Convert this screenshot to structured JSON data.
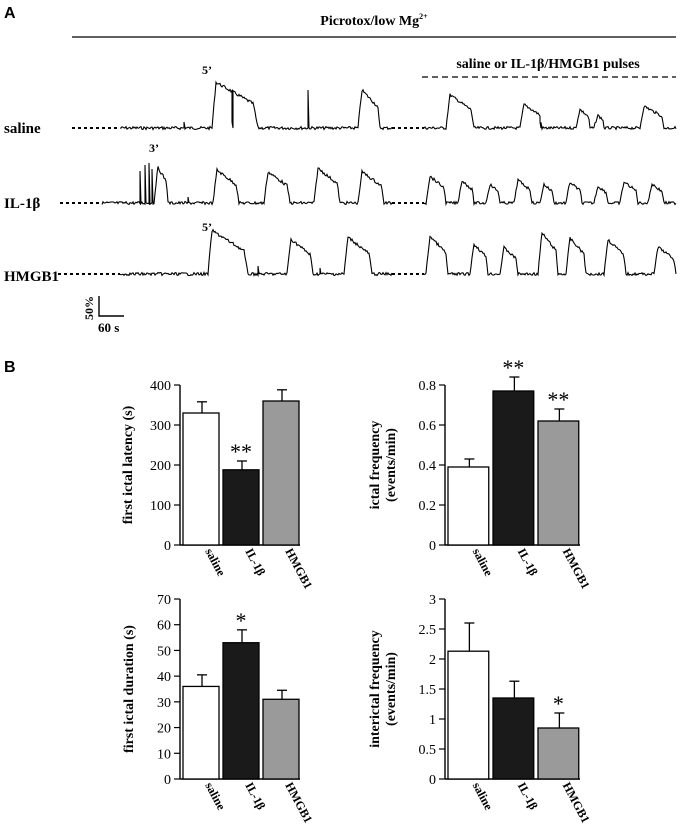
{
  "panel_a": {
    "letter": "A",
    "protocol_label": "Picrotox/low Mg",
    "protocol_superscript": "2+",
    "pulses_label": "saline or IL-1β/HMGB1 pulses",
    "scale_bar_y": "50%",
    "scale_bar_x": "60 s",
    "traces": [
      {
        "label": "saline",
        "first_event_label": "5’"
      },
      {
        "label": "IL-1β",
        "first_event_label": "3’"
      },
      {
        "label": "HMGB1",
        "first_event_label": "5’"
      }
    ]
  },
  "panel_b": {
    "letter": "B"
  },
  "colors": {
    "saline": "#ffffff",
    "il1b": "#1a1a1a",
    "hmgb1": "#9a9a9a",
    "stroke": "#000000"
  },
  "chart_data": [
    {
      "type": "bar",
      "categories": [
        "saline",
        "IL-1β",
        "HMGB1"
      ],
      "values": [
        330,
        188,
        360
      ],
      "errors": [
        28,
        22,
        28
      ],
      "significance": [
        "",
        "**",
        ""
      ],
      "ylabel": "first ictal latency (s)",
      "ylim": [
        0,
        400
      ],
      "yticks": [
        0,
        100,
        200,
        300,
        400
      ],
      "ytick_labels": [
        "0",
        "100",
        "200",
        "300",
        "400"
      ]
    },
    {
      "type": "bar",
      "categories": [
        "saline",
        "IL-1β",
        "HMGB1"
      ],
      "values": [
        0.39,
        0.77,
        0.62
      ],
      "errors": [
        0.04,
        0.07,
        0.06
      ],
      "significance": [
        "",
        "**",
        "**"
      ],
      "ylabel_lines": [
        "ictal frequency",
        "(events/min)"
      ],
      "ylim": [
        0,
        0.8
      ],
      "yticks": [
        0,
        0.2,
        0.4,
        0.6,
        0.8
      ],
      "ytick_labels": [
        "0",
        "0.2",
        "0.4",
        "0.6",
        "0.8"
      ]
    },
    {
      "type": "bar",
      "categories": [
        "saline",
        "IL-1β",
        "HMGB1"
      ],
      "values": [
        36,
        53,
        31
      ],
      "errors": [
        4.5,
        5,
        3.5
      ],
      "significance": [
        "",
        "*",
        ""
      ],
      "ylabel": "first ictal duration (s)",
      "ylim": [
        0,
        70
      ],
      "yticks": [
        0,
        10,
        20,
        30,
        40,
        50,
        60,
        70
      ],
      "ytick_labels": [
        "0",
        "10",
        "20",
        "30",
        "40",
        "50",
        "60",
        "70"
      ]
    },
    {
      "type": "bar",
      "categories": [
        "saline",
        "IL-1β",
        "HMGB1"
      ],
      "values": [
        2.13,
        1.35,
        0.85
      ],
      "errors": [
        0.47,
        0.28,
        0.25
      ],
      "significance": [
        "",
        "",
        "*"
      ],
      "ylabel_lines": [
        "interictal frequency",
        "(events/min)"
      ],
      "ylim": [
        0,
        3
      ],
      "yticks": [
        0,
        0.5,
        1,
        1.5,
        2,
        2.5,
        3
      ],
      "ytick_labels": [
        "0",
        "0.5",
        "1",
        "1.5",
        "2",
        "2.5",
        "3"
      ]
    }
  ]
}
